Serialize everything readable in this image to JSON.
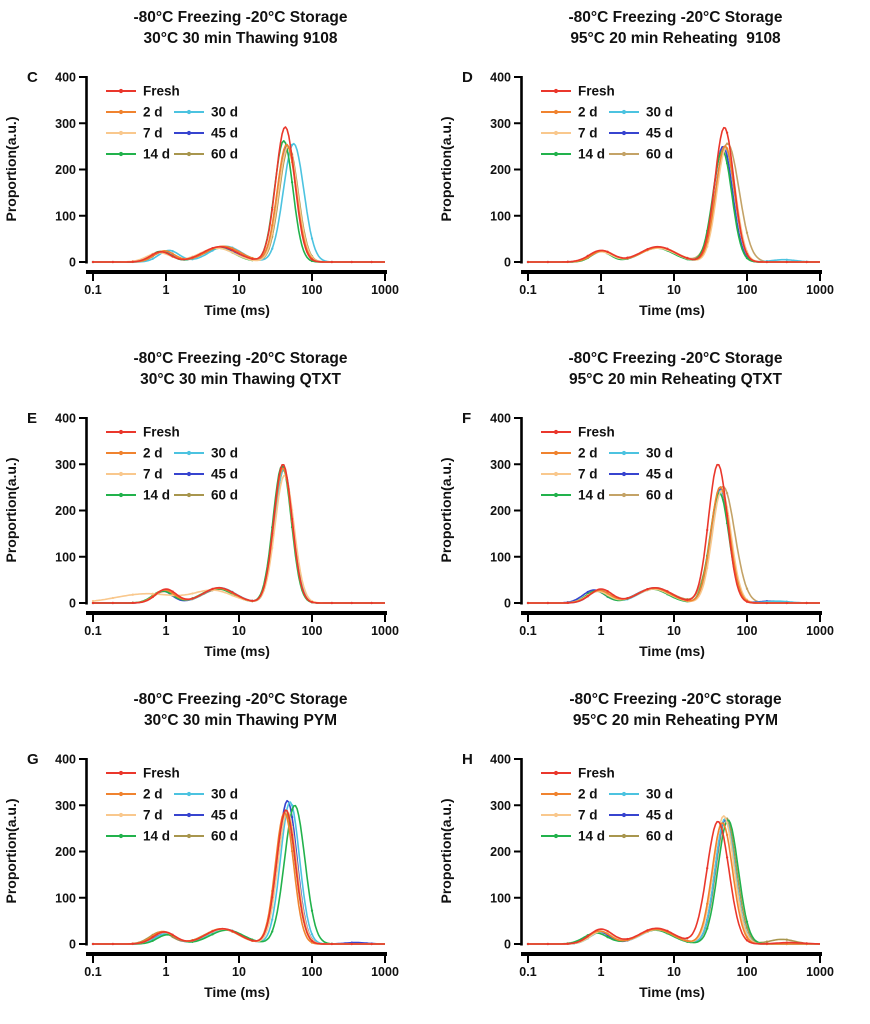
{
  "figure": {
    "description": "Six-panel line figure of T2 relaxation proportion distributions",
    "panels_order": [
      "C",
      "D",
      "E",
      "F",
      "G",
      "H"
    ]
  },
  "palette": {
    "Fresh": "#EA372C",
    "2 d": "#F0832F",
    "7 d": "#F9C88D",
    "14 d": "#22B24C",
    "30 d": "#4CC3E0",
    "45 d": "#3744CF",
    "60 d": "#A8964E"
  },
  "legend_layout": {
    "col1": [
      "Fresh",
      "2 d",
      "7 d",
      "14 d"
    ],
    "col2": [
      "30 d",
      "45 d",
      "60 d"
    ]
  },
  "chart_data": [
    {
      "type": "line",
      "panel_letter": "C",
      "title_line1": "-80°C Freezing -20°C Storage",
      "title_line2": "30°C 30 min Thawing 9108",
      "xlabel": "Time (ms)",
      "ylabel": "Proportion(a.u.)",
      "x_scale": "log",
      "xlim": [
        0.1,
        1000
      ],
      "ylim": [
        0,
        400
      ],
      "xticks": [
        0.1,
        1,
        10,
        100,
        1000
      ],
      "xtick_labels": [
        "0.1",
        "1",
        "10",
        "100",
        "1000"
      ],
      "yticks": [
        0,
        100,
        200,
        300,
        400
      ],
      "series": [
        {
          "name": "Fresh",
          "peaks": [
            [
              0.85,
              22,
              0.14
            ],
            [
              5.5,
              33,
              0.24
            ],
            [
              43,
              292,
              0.13
            ]
          ]
        },
        {
          "name": "2 d",
          "peaks": [
            [
              0.95,
              24,
              0.14
            ],
            [
              6.0,
              34,
              0.24
            ],
            [
              45,
              254,
              0.13
            ]
          ]
        },
        {
          "name": "7 d",
          "peaks": [
            [
              0.8,
              20,
              0.16
            ],
            [
              5.0,
              30,
              0.24
            ],
            [
              47,
              250,
              0.13
            ]
          ]
        },
        {
          "name": "14 d",
          "peaks": [
            [
              0.85,
              23,
              0.14
            ],
            [
              5.2,
              30,
              0.22
            ],
            [
              41,
              262,
              0.125
            ]
          ]
        },
        {
          "name": "30 d",
          "peaks": [
            [
              1.1,
              25,
              0.14
            ],
            [
              6.5,
              34,
              0.22
            ],
            [
              56,
              256,
              0.14
            ]
          ]
        },
        {
          "name": "45 d",
          "peaks": [
            [
              0.9,
              22,
              0.13
            ],
            [
              5.5,
              31,
              0.23
            ],
            [
              46,
              252,
              0.13
            ]
          ]
        },
        {
          "name": "60 d",
          "peaks": [
            [
              0.9,
              21,
              0.14
            ],
            [
              5.6,
              30,
              0.23
            ],
            [
              48,
              248,
              0.13
            ]
          ]
        }
      ]
    },
    {
      "type": "line",
      "panel_letter": "D",
      "title_line1": "-80°C Freezing -20°C Storage",
      "title_line2": "95°C 20 min Reheating  9108",
      "xlabel": "Time (ms)",
      "ylabel": "Proportion(a.u.)",
      "x_scale": "log",
      "xlim": [
        0.1,
        1000
      ],
      "ylim": [
        0,
        400
      ],
      "xticks": [
        0.1,
        1,
        10,
        100,
        1000
      ],
      "xtick_labels": [
        "0.1",
        "1",
        "10",
        "100",
        "1000"
      ],
      "yticks": [
        0,
        100,
        200,
        300,
        400
      ],
      "series": [
        {
          "name": "Fresh",
          "peaks": [
            [
              1.0,
              25,
              0.16
            ],
            [
              6.0,
              33,
              0.24
            ],
            [
              49,
              291,
              0.13
            ]
          ]
        },
        {
          "name": "2 d",
          "peaks": [
            [
              1.05,
              24,
              0.15
            ],
            [
              6.2,
              32,
              0.24
            ],
            [
              50,
              251,
              0.13
            ]
          ]
        },
        {
          "name": "7 d",
          "peaks": [
            [
              1.0,
              22,
              0.15
            ],
            [
              6.0,
              30,
              0.24
            ],
            [
              52,
              247,
              0.13
            ]
          ]
        },
        {
          "name": "14 d",
          "peaks": [
            [
              1.0,
              23,
              0.13
            ],
            [
              5.8,
              30,
              0.23
            ],
            [
              46,
              241,
              0.13
            ]
          ]
        },
        {
          "name": "30 d",
          "peaks": [
            [
              1.05,
              23,
              0.15
            ],
            [
              6.0,
              31,
              0.23
            ],
            [
              50,
              247,
              0.13
            ],
            [
              320,
              5,
              0.16
            ]
          ]
        },
        {
          "name": "45 d",
          "peaks": [
            [
              1.0,
              23,
              0.14
            ],
            [
              5.9,
              31,
              0.23
            ],
            [
              47,
              250,
              0.13
            ]
          ]
        },
        {
          "name": "60 d",
          "color": "#C4A367",
          "peaks": [
            [
              1.0,
              23,
              0.15
            ],
            [
              6.1,
              32,
              0.24
            ],
            [
              54,
              256,
              0.16
            ]
          ]
        }
      ]
    },
    {
      "type": "line",
      "panel_letter": "E",
      "title_line1": "-80°C Freezing -20°C Storage",
      "title_line2": "30°C 30 min Thawing QTXT",
      "xlabel": "Time (ms)",
      "ylabel": "Proportion(a.u.)",
      "x_scale": "log",
      "xlim": [
        0.1,
        1000
      ],
      "ylim": [
        0,
        400
      ],
      "xticks": [
        0.1,
        1,
        10,
        100,
        1000
      ],
      "xtick_labels": [
        "0.1",
        "1",
        "10",
        "100",
        "1000"
      ],
      "yticks": [
        0,
        100,
        200,
        300,
        400
      ],
      "series": [
        {
          "name": "Fresh",
          "peaks": [
            [
              1.0,
              30,
              0.14
            ],
            [
              5.3,
              33,
              0.22
            ],
            [
              40,
              300,
              0.125
            ]
          ]
        },
        {
          "name": "2 d",
          "peaks": [
            [
              0.95,
              28,
              0.14
            ],
            [
              5.2,
              32,
              0.22
            ],
            [
              40,
              292,
              0.125
            ]
          ]
        },
        {
          "name": "7 d",
          "peaks": [
            [
              0.55,
              20,
              0.42
            ],
            [
              4.5,
              26,
              0.26
            ],
            [
              42,
              276,
              0.13
            ]
          ]
        },
        {
          "name": "14 d",
          "peaks": [
            [
              0.9,
              26,
              0.14
            ],
            [
              5.0,
              31,
              0.22
            ],
            [
              39,
              297,
              0.125
            ]
          ]
        },
        {
          "name": "30 d",
          "peaks": [
            [
              0.95,
              27,
              0.14
            ],
            [
              5.4,
              33,
              0.22
            ],
            [
              41,
              290,
              0.125
            ]
          ]
        },
        {
          "name": "45 d",
          "peaks": [
            [
              0.9,
              26,
              0.13
            ],
            [
              5.2,
              31,
              0.22
            ],
            [
              40,
              293,
              0.125
            ]
          ]
        },
        {
          "name": "60 d",
          "peaks": [
            [
              0.95,
              25,
              0.14
            ],
            [
              5.3,
              30,
              0.22
            ],
            [
              41,
              288,
              0.125
            ]
          ]
        }
      ]
    },
    {
      "type": "line",
      "panel_letter": "F",
      "title_line1": "-80°C Freezing -20°C Storage",
      "title_line2": "95°C 20 min Reheating QTXT",
      "xlabel": "Time (ms)",
      "ylabel": "Proportion(a.u.)",
      "x_scale": "log",
      "xlim": [
        0.1,
        1000
      ],
      "ylim": [
        0,
        400
      ],
      "xticks": [
        0.1,
        1,
        10,
        100,
        1000
      ],
      "xtick_labels": [
        "0.1",
        "1",
        "10",
        "100",
        "1000"
      ],
      "yticks": [
        0,
        100,
        200,
        300,
        400
      ],
      "series": [
        {
          "name": "Fresh",
          "peaks": [
            [
              1.0,
              30,
              0.15
            ],
            [
              5.5,
              33,
              0.23
            ],
            [
              40,
              300,
              0.13
            ]
          ]
        },
        {
          "name": "2 d",
          "peaks": [
            [
              0.95,
              27,
              0.15
            ],
            [
              5.3,
              32,
              0.23
            ],
            [
              43,
              251,
              0.13
            ]
          ]
        },
        {
          "name": "7 d",
          "peaks": [
            [
              0.9,
              25,
              0.15
            ],
            [
              5.2,
              30,
              0.23
            ],
            [
              45,
              243,
              0.13
            ]
          ]
        },
        {
          "name": "14 d",
          "peaks": [
            [
              0.85,
              26,
              0.14
            ],
            [
              5.0,
              30,
              0.22
            ],
            [
              42,
              238,
              0.13
            ]
          ]
        },
        {
          "name": "30 d",
          "peaks": [
            [
              0.95,
              28,
              0.14
            ],
            [
              5.5,
              33,
              0.22
            ],
            [
              44,
              244,
              0.13
            ],
            [
              260,
              4,
              0.16
            ]
          ]
        },
        {
          "name": "45 d",
          "peaks": [
            [
              0.8,
              28,
              0.15
            ],
            [
              5.1,
              31,
              0.23
            ],
            [
              43,
              246,
              0.13
            ],
            [
              210,
              4,
              0.16
            ]
          ]
        },
        {
          "name": "60 d",
          "color": "#C4A367",
          "peaks": [
            [
              0.95,
              26,
              0.15
            ],
            [
              5.6,
              31,
              0.24
            ],
            [
              47,
              252,
              0.16
            ]
          ]
        }
      ]
    },
    {
      "type": "line",
      "panel_letter": "G",
      "title_line1": "-80°C Freezing -20°C Storage",
      "title_line2": "30°C 30 min Thawing PYM",
      "xlabel": "Time (ms)",
      "ylabel": "Proportion(a.u.)",
      "x_scale": "log",
      "xlim": [
        0.1,
        1000
      ],
      "ylim": [
        0,
        400
      ],
      "xticks": [
        0.1,
        1,
        10,
        100,
        1000
      ],
      "xtick_labels": [
        "0.1",
        "1",
        "10",
        "100",
        "1000"
      ],
      "yticks": [
        0,
        100,
        200,
        300,
        400
      ],
      "series": [
        {
          "name": "Fresh",
          "peaks": [
            [
              0.95,
              26,
              0.15
            ],
            [
              6.0,
              33,
              0.23
            ],
            [
              44,
              290,
              0.13
            ]
          ]
        },
        {
          "name": "2 d",
          "peaks": [
            [
              0.9,
              27,
              0.15
            ],
            [
              5.8,
              33,
              0.23
            ],
            [
              42,
              284,
              0.125
            ]
          ]
        },
        {
          "name": "7 d",
          "peaks": [
            [
              0.95,
              25,
              0.15
            ],
            [
              6.0,
              32,
              0.23
            ],
            [
              46,
              286,
              0.13
            ]
          ]
        },
        {
          "name": "14 d",
          "peaks": [
            [
              1.05,
              20,
              0.14
            ],
            [
              6.8,
              30,
              0.23
            ],
            [
              58,
              300,
              0.14
            ]
          ]
        },
        {
          "name": "30 d",
          "peaks": [
            [
              1.0,
              22,
              0.14
            ],
            [
              6.3,
              32,
              0.23
            ],
            [
              50,
              307,
              0.13
            ]
          ]
        },
        {
          "name": "45 d",
          "peaks": [
            [
              0.95,
              24,
              0.14
            ],
            [
              6.0,
              32,
              0.23
            ],
            [
              46,
              310,
              0.13
            ],
            [
              400,
              3,
              0.15
            ]
          ]
        },
        {
          "name": "60 d",
          "peaks": [
            [
              0.85,
              26,
              0.15
            ],
            [
              5.8,
              32,
              0.24
            ],
            [
              44,
              283,
              0.13
            ]
          ]
        }
      ]
    },
    {
      "type": "line",
      "panel_letter": "H",
      "title_line1": "-80°C Freezing -20°C storage",
      "title_line2": "95°C 20 min Reheating PYM",
      "xlabel": "Time (ms)",
      "ylabel": "Proportion(a.u.)",
      "x_scale": "log",
      "xlim": [
        0.1,
        1000
      ],
      "ylim": [
        0,
        400
      ],
      "xticks": [
        0.1,
        1,
        10,
        100,
        1000
      ],
      "xtick_labels": [
        "0.1",
        "1",
        "10",
        "100",
        "1000"
      ],
      "yticks": [
        0,
        100,
        200,
        300,
        400
      ],
      "series": [
        {
          "name": "Fresh",
          "peaks": [
            [
              1.0,
              32,
              0.16
            ],
            [
              5.8,
              34,
              0.24
            ],
            [
              40,
              265,
              0.15
            ],
            [
              380,
              3,
              0.18
            ]
          ]
        },
        {
          "name": "2 d",
          "peaks": [
            [
              0.95,
              28,
              0.15
            ],
            [
              5.7,
              32,
              0.23
            ],
            [
              46,
              262,
              0.14
            ]
          ]
        },
        {
          "name": "7 d",
          "peaks": [
            [
              1.0,
              27,
              0.15
            ],
            [
              5.8,
              31,
              0.23
            ],
            [
              48,
              277,
              0.14
            ]
          ]
        },
        {
          "name": "14 d",
          "peaks": [
            [
              0.85,
              24,
              0.16
            ],
            [
              5.5,
              30,
              0.23
            ],
            [
              55,
              268,
              0.14
            ]
          ]
        },
        {
          "name": "30 d",
          "peaks": [
            [
              1.0,
              26,
              0.15
            ],
            [
              5.9,
              31,
              0.23
            ],
            [
              50,
              271,
              0.135
            ]
          ]
        },
        {
          "name": "45 d",
          "peaks": [
            [
              0.95,
              26,
              0.14
            ],
            [
              5.8,
              31,
              0.23
            ],
            [
              50,
              268,
              0.135
            ]
          ]
        },
        {
          "name": "60 d",
          "peaks": [
            [
              1.0,
              26,
              0.15
            ],
            [
              5.9,
              31,
              0.24
            ],
            [
              52,
              272,
              0.14
            ],
            [
              300,
              10,
              0.17
            ]
          ]
        }
      ]
    }
  ]
}
